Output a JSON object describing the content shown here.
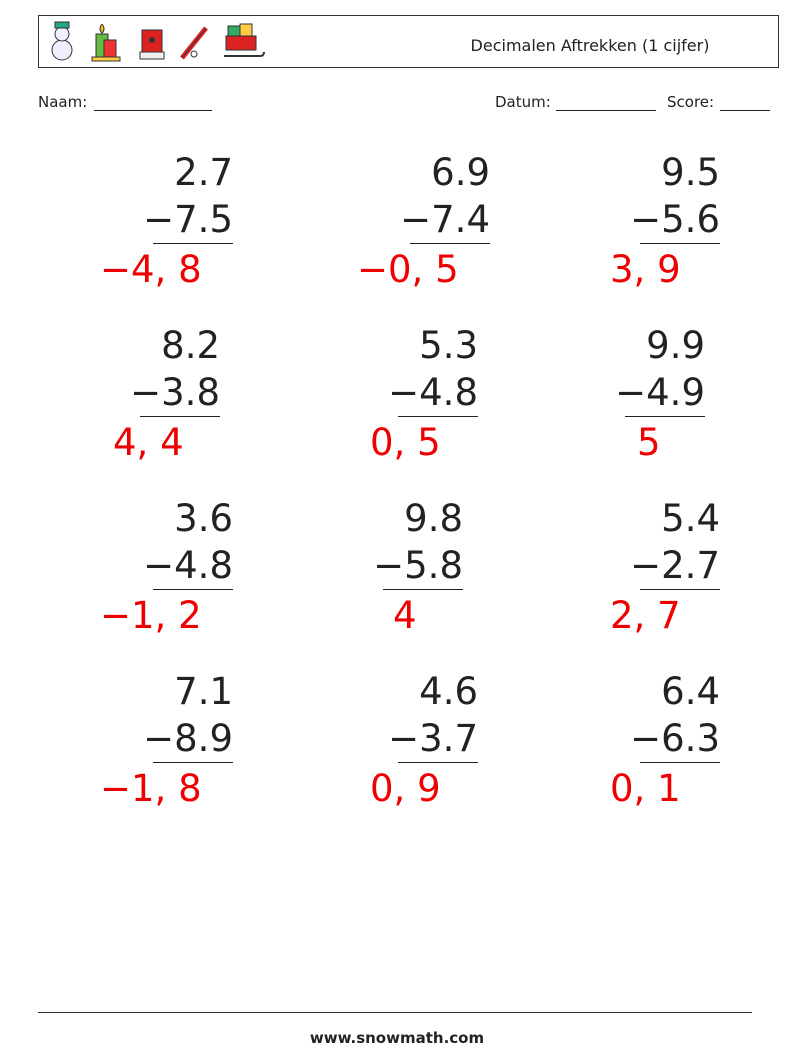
{
  "header": {
    "title": "Decimalen Aftrekken (1 cijfer)"
  },
  "fields": {
    "name": "Naam:",
    "date": "Datum:",
    "score": "Score:"
  },
  "problems": [
    {
      "top": "2.7",
      "bottom": "−7.5",
      "answer": "−4, 8"
    },
    {
      "top": "6.9",
      "bottom": "−7.4",
      "answer": "−0, 5"
    },
    {
      "top": "9.5",
      "bottom": "−5.6",
      "answer": "3, 9"
    },
    {
      "top": "8.2",
      "bottom": "−3.8",
      "answer": "4, 4"
    },
    {
      "top": "5.3",
      "bottom": "−4.8",
      "answer": "0, 5"
    },
    {
      "top": "9.9",
      "bottom": "−4.9",
      "answer": "5"
    },
    {
      "top": "3.6",
      "bottom": "−4.8",
      "answer": "−1, 2"
    },
    {
      "top": "9.8",
      "bottom": "−5.8",
      "answer": "4"
    },
    {
      "top": "5.4",
      "bottom": "−2.7",
      "answer": "2, 7"
    },
    {
      "top": "7.1",
      "bottom": "−8.9",
      "answer": "−1, 8"
    },
    {
      "top": "4.6",
      "bottom": "−3.7",
      "answer": "0, 9"
    },
    {
      "top": "6.4",
      "bottom": "−6.3",
      "answer": "0, 1"
    }
  ],
  "footer": {
    "site": "www.snowmath.com"
  }
}
